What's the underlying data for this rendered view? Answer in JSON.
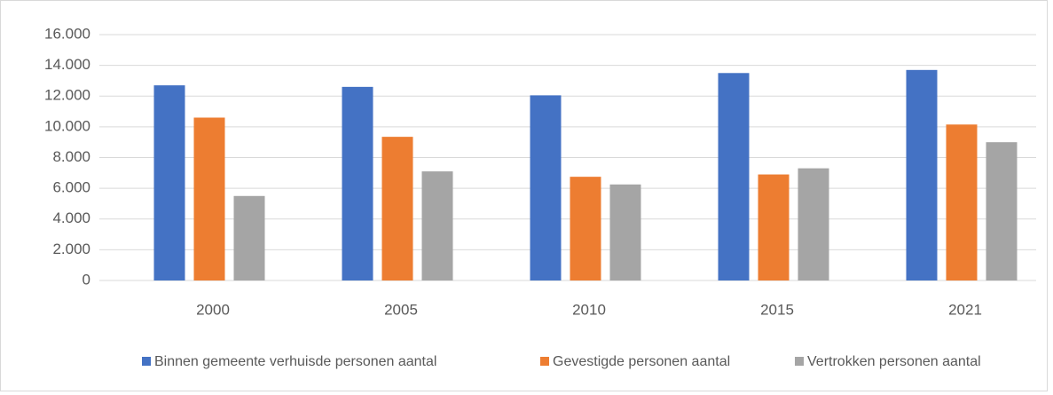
{
  "chart_data": {
    "type": "bar",
    "categories": [
      "2000",
      "2005",
      "2010",
      "2015",
      "2021"
    ],
    "series": [
      {
        "name": "Binnen gemeente verhuisde personen aantal",
        "color": "#4472c4",
        "values": [
          12700,
          12600,
          12050,
          13500,
          13700
        ]
      },
      {
        "name": "Gevestigde personen aantal",
        "color": "#ed7d31",
        "values": [
          10600,
          9350,
          6750,
          6900,
          10150
        ]
      },
      {
        "name": "Vertrokken personen aantal",
        "color": "#a5a5a5",
        "values": [
          5500,
          7100,
          6250,
          7300,
          9000
        ]
      }
    ],
    "ylim": [
      0,
      16000
    ],
    "yticks": [
      0,
      {
        "value": 2000,
        "label": "2.000"
      },
      {
        "value": 4000,
        "label": "4.000"
      },
      {
        "value": 6000,
        "label": "6.000"
      },
      {
        "value": 8000,
        "label": "8.000"
      },
      {
        "value": 10000,
        "label": "10.000"
      },
      {
        "value": 12000,
        "label": "12.000"
      },
      {
        "value": 14000,
        "label": "14.000"
      },
      {
        "value": 16000,
        "label": "16.000"
      }
    ],
    "grid": true,
    "legend": "bottom"
  }
}
